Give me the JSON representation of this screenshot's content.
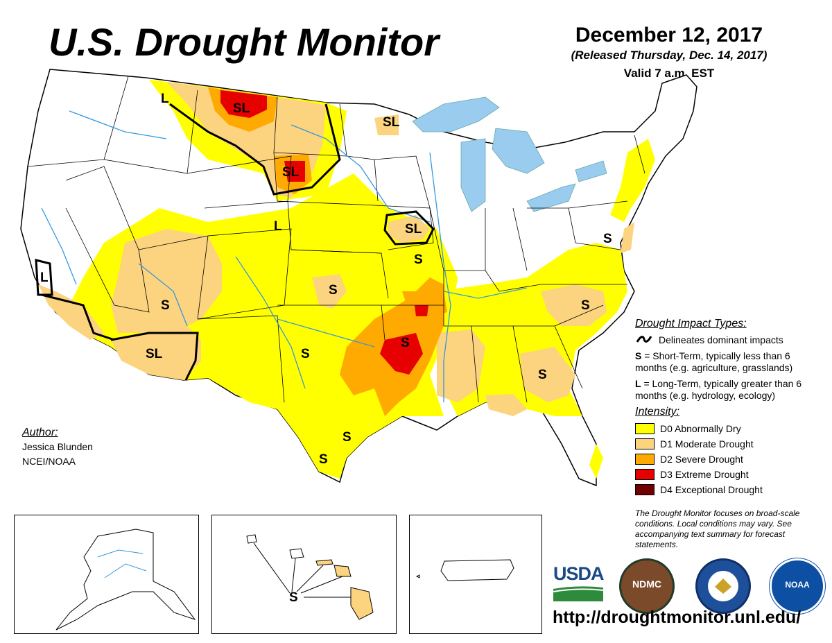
{
  "header": {
    "title": "U.S. Drought Monitor",
    "date": "December 12, 2017",
    "released": "(Released Thursday, Dec. 14, 2017)",
    "valid": "Valid 7 a.m. EST"
  },
  "impact_types": {
    "heading": "Drought Impact Types:",
    "delineates": "Delineates dominant impacts",
    "s_key": "S",
    "s_text": "= Short-Term, typically less than 6 months (e.g. agriculture, grasslands)",
    "l_key": "L",
    "l_text": "= Long-Term, typically greater than 6 months (e.g. hydrology, ecology)"
  },
  "intensity": {
    "heading": "Intensity:",
    "levels": [
      {
        "label": "D0 Abnormally Dry",
        "color": "#ffff00"
      },
      {
        "label": "D1 Moderate Drought",
        "color": "#fcd37f"
      },
      {
        "label": "D2 Severe Drought",
        "color": "#ffaa00"
      },
      {
        "label": "D3 Extreme Drought",
        "color": "#e60000"
      },
      {
        "label": "D4 Exceptional Drought",
        "color": "#730000"
      }
    ]
  },
  "disclaimer": "The Drought Monitor focuses on broad-scale conditions. Local conditions may vary. See accompanying text summary for forecast statements.",
  "author": {
    "heading": "Author:",
    "name": "Jessica Blunden",
    "org": "NCEI/NOAA"
  },
  "map_labels": {
    "sl": "SL",
    "s": "S",
    "l": "L"
  },
  "logos": {
    "usda": "USDA",
    "ndmc": "NDMC",
    "noaa": "NOAA"
  },
  "url": "http://droughtmonitor.unl.edu/",
  "colors": {
    "water": "#99ccee",
    "river": "#3399dd",
    "usda_blue": "#1a4a87",
    "usda_green": "#2e8b3c"
  }
}
